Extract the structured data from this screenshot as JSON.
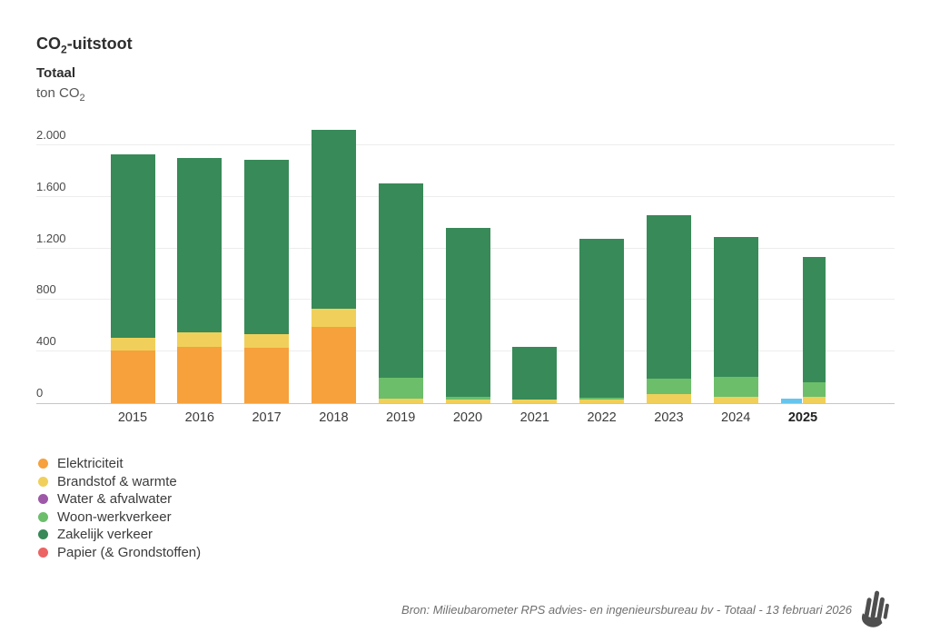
{
  "header": {
    "title": {
      "pre": "CO",
      "sub": "2",
      "post": "-uitstoot"
    },
    "subtitle": "Totaal",
    "unit": {
      "pre": "ton CO",
      "sub": "2"
    }
  },
  "legend": [
    {
      "key": "elektriciteit",
      "label": "Elektriciteit",
      "color": "#f6a13c"
    },
    {
      "key": "brandstof",
      "label": "Brandstof & warmte",
      "color": "#f0d05a"
    },
    {
      "key": "water",
      "label": "Water & afvalwater",
      "color": "#9d59a8"
    },
    {
      "key": "woonwerk",
      "label": "Woon-werkverkeer",
      "color": "#6cbe6b"
    },
    {
      "key": "zakelijk",
      "label": "Zakelijk verkeer",
      "color": "#388a58"
    },
    {
      "key": "papier",
      "label": "Papier (& Grondstoffen)",
      "color": "#ec6363"
    }
  ],
  "chart_data": {
    "type": "bar",
    "stacked": true,
    "title": "CO2-uitstoot - Totaal",
    "ylabel": "ton CO2",
    "xlabel": "",
    "ylim": [
      0,
      2000
    ],
    "grid": true,
    "yticks": [
      {
        "label": "2.000",
        "value": 2000
      },
      {
        "label": "1.600",
        "value": 1600
      },
      {
        "label": "1.200",
        "value": 1200
      },
      {
        "label": "800",
        "value": 800
      },
      {
        "label": "400",
        "value": 400
      },
      {
        "label": "0",
        "value": 0
      }
    ],
    "categories": [
      "2015",
      "2016",
      "2017",
      "2018",
      "2019",
      "2020",
      "2021",
      "2022",
      "2023",
      "2024",
      "2025"
    ],
    "highlighted_category": "2025",
    "series": [
      {
        "key": "elektriciteit",
        "name": "Elektriciteit",
        "color": "#f6a13c",
        "values": [
          410,
          435,
          430,
          590,
          0,
          0,
          0,
          0,
          0,
          0,
          0
        ]
      },
      {
        "key": "brandstof",
        "name": "Brandstof & warmte",
        "color": "#f0d05a",
        "values": [
          100,
          110,
          105,
          140,
          35,
          25,
          30,
          27,
          70,
          50,
          50
        ]
      },
      {
        "key": "water",
        "name": "Water & afvalwater",
        "color": "#9d59a8",
        "values": [
          0,
          0,
          0,
          0,
          0,
          0,
          0,
          0,
          0,
          0,
          0
        ]
      },
      {
        "key": "woonwerk",
        "name": "Woon-werkverkeer",
        "color": "#6cbe6b",
        "values": [
          0,
          0,
          0,
          0,
          165,
          22,
          0,
          13,
          120,
          153,
          113
        ]
      },
      {
        "key": "zakelijk",
        "name": "Zakelijk verkeer",
        "color": "#388a58",
        "values": [
          1420,
          1355,
          1355,
          1390,
          1505,
          1310,
          405,
          1230,
          1265,
          1082,
          972
        ]
      },
      {
        "key": "papier",
        "name": "Papier (& Grondstoffen)",
        "color": "#ec6363",
        "values": [
          0,
          0,
          0,
          0,
          0,
          0,
          0,
          0,
          0,
          0,
          0
        ]
      }
    ],
    "totals": [
      1930,
      1900,
      1890,
      2120,
      1705,
      1357,
      435,
      1270,
      1455,
      1285,
      1135
    ],
    "extra_bar": {
      "category": "2025",
      "color": "#64c6ee",
      "value": 35,
      "position": "left-half"
    }
  },
  "footer": {
    "source": "Bron: Milieubarometer RPS advies- en ingenieursbureau bv - Totaal - 13 februari 2026",
    "logo": "milieubarometer-hand-logo"
  }
}
